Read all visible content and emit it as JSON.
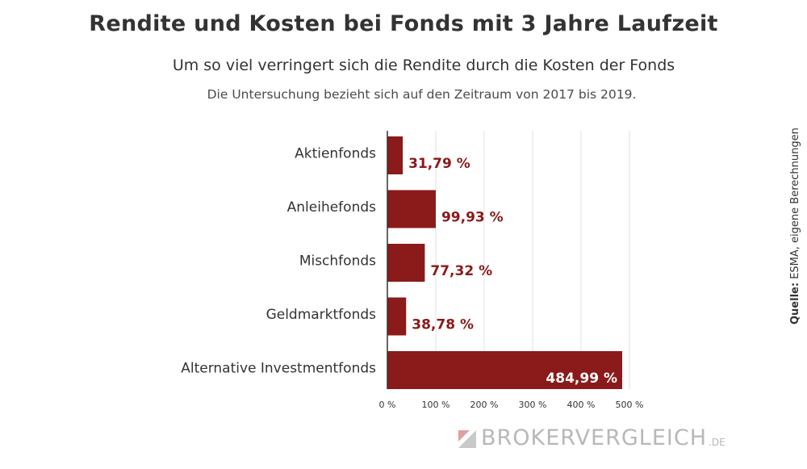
{
  "header": {
    "title": "Rendite und Kosten bei Fonds mit 3 Jahre Laufzeit",
    "subtitle": "Um so viel verringert sich die Rendite durch die Kosten der Fonds",
    "note": "Die Untersuchung bezieht sich auf den Zeitraum von 2017 bis 2019."
  },
  "source": {
    "label": "Quelle:",
    "text": "ESMA, eigene Berechnungen"
  },
  "brand": {
    "name": "BrokerVergleich",
    "tld": ".de",
    "logo_icon": "brokervergleich-logo-icon"
  },
  "chart_data": {
    "type": "bar",
    "orientation": "horizontal",
    "categories": [
      "Aktienfonds",
      "Anleihefonds",
      "Mischfonds",
      "Geldmarktfonds",
      "Alternative Investmentfonds"
    ],
    "values": [
      31.79,
      99.93,
      77.32,
      38.78,
      484.99
    ],
    "value_labels": [
      "31,79 %",
      "99,93 %",
      "77,32 %",
      "38,78 %",
      "484,99 %"
    ],
    "xlim": [
      0,
      500
    ],
    "x_ticks": [
      0,
      100,
      200,
      300,
      400,
      500
    ],
    "x_tick_labels": [
      "0 %",
      "100 %",
      "200 %",
      "300 %",
      "400 %",
      "500 %"
    ],
    "grid": true,
    "bar_color": "#8b1a1a",
    "title": "",
    "xlabel": "",
    "ylabel": ""
  }
}
